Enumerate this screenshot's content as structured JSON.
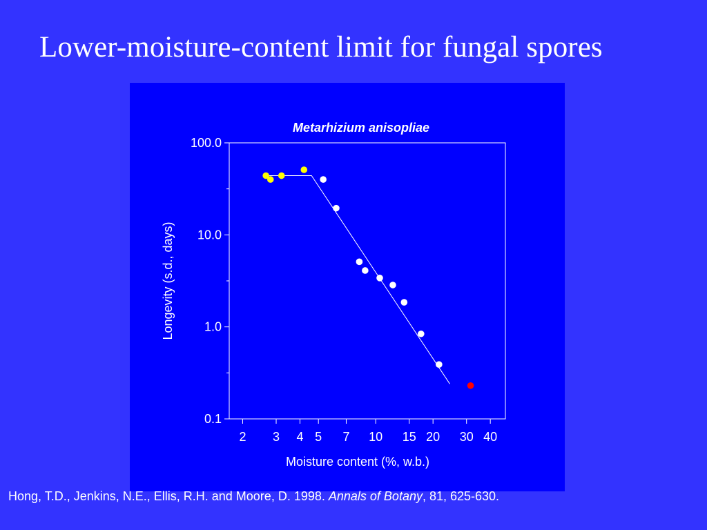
{
  "slide": {
    "title": "Lower-moisture-content limit for fungal spores"
  },
  "citation": {
    "authors": "Hong, T.D., Jenkins, N.E., Ellis, R.H. and Moore, D. 1998. ",
    "journal": "Annals of Botany",
    "details": ", 81, 625-630."
  },
  "colors": {
    "background": "#3333ff",
    "panel": "#0000ff",
    "axis": "#ffffff",
    "yellow_points": "#ffff00",
    "white_points": "#ffffff",
    "red_point": "#ff0000"
  },
  "chart_data": {
    "type": "scatter",
    "title": "Metarhizium anisopliae",
    "xlabel": "Moisture content (%, w.b.)",
    "ylabel": "Longevity (s.d., days)",
    "x_scale": "log",
    "y_scale": "log",
    "xlim": [
      1.7,
      48
    ],
    "ylim": [
      0.1,
      100
    ],
    "x_ticks": [
      2,
      3,
      4,
      5,
      7,
      10,
      15,
      20,
      30,
      40
    ],
    "x_tick_labels": [
      "2",
      "3",
      "4",
      "5",
      "7",
      "10",
      "15",
      "20",
      "30",
      "40"
    ],
    "y_ticks": [
      0.1,
      1,
      10,
      100
    ],
    "y_tick_labels": [
      "0.1",
      "1.0",
      "10.0",
      "100.0"
    ],
    "grid": false,
    "series": [
      {
        "color": "#ffff00",
        "points": [
          {
            "x": 2.65,
            "y": 44
          },
          {
            "x": 2.8,
            "y": 40
          },
          {
            "x": 3.2,
            "y": 44
          },
          {
            "x": 4.2,
            "y": 51
          }
        ]
      },
      {
        "color": "#ffffff",
        "points": [
          {
            "x": 5.3,
            "y": 40
          },
          {
            "x": 6.2,
            "y": 19.5
          },
          {
            "x": 8.2,
            "y": 5.1
          },
          {
            "x": 8.8,
            "y": 4.1
          },
          {
            "x": 10.5,
            "y": 3.4
          },
          {
            "x": 12.3,
            "y": 2.85
          },
          {
            "x": 14.1,
            "y": 1.85
          },
          {
            "x": 17.3,
            "y": 0.84
          },
          {
            "x": 21.5,
            "y": 0.39
          }
        ]
      },
      {
        "color": "#ff0000",
        "points": [
          {
            "x": 31.5,
            "y": 0.23
          }
        ]
      }
    ],
    "fit_line": [
      {
        "x": 2.65,
        "y": 44
      },
      {
        "x": 4.6,
        "y": 44
      },
      {
        "x": 24.5,
        "y": 0.24
      }
    ]
  }
}
